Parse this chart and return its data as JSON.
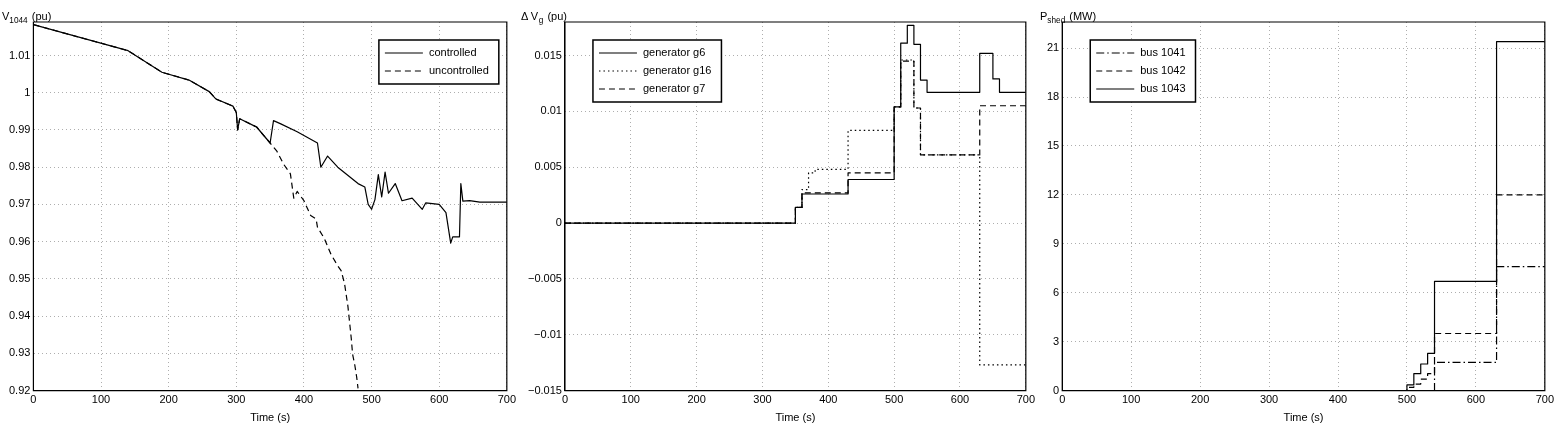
{
  "chart_data": [
    {
      "type": "line",
      "ylabel": "V$_{1044}$ (pu)",
      "xlabel": "Time (s)",
      "xlim": [
        0,
        700
      ],
      "xticks": [
        0,
        100,
        200,
        300,
        400,
        500,
        600,
        700
      ],
      "ylim": [
        0.92,
        1.019
      ],
      "yticks": [
        0.92,
        0.93,
        0.94,
        0.95,
        0.96,
        0.97,
        0.98,
        0.99,
        1,
        1.01
      ],
      "grid": true,
      "legend": "top right",
      "marker": "none",
      "series": [
        {
          "name": "controlled",
          "color": "#000000",
          "line_style": "solid",
          "x": [
            0,
            140,
            190,
            230,
            260,
            270,
            295,
            300,
            302,
            305,
            330,
            350,
            355,
            365,
            390,
            420,
            425,
            435,
            450,
            480,
            490,
            495,
            500,
            505,
            510,
            515,
            520,
            525,
            535,
            545,
            560,
            575,
            580,
            600,
            610,
            617,
            620,
            630,
            632,
            635,
            645,
            660,
            700
          ],
          "values": [
            1.0183,
            1.0113,
            1.0055,
            1.0034,
            1.0003,
            0.9983,
            0.9964,
            0.9947,
            0.99,
            0.993,
            0.9908,
            0.9865,
            0.9925,
            0.9917,
            0.9895,
            0.9865,
            0.98,
            0.983,
            0.98,
            0.9756,
            0.9747,
            0.97,
            0.9687,
            0.9713,
            0.978,
            0.972,
            0.9787,
            0.973,
            0.9756,
            0.971,
            0.9717,
            0.9687,
            0.9704,
            0.97,
            0.9678,
            0.9596,
            0.9613,
            0.9613,
            0.9756,
            0.9709,
            0.971,
            0.9706,
            0.9706
          ]
        },
        {
          "name": "uncontrolled",
          "color": "#000000",
          "line_style": "dashed",
          "x": [
            0,
            140,
            190,
            230,
            260,
            270,
            295,
            300,
            302,
            305,
            330,
            350,
            360,
            370,
            380,
            385,
            390,
            400,
            410,
            418,
            420,
            430,
            440,
            450,
            455,
            460,
            465,
            468,
            470,
            472,
            475,
            478,
            480
          ],
          "values": [
            1.0183,
            1.0113,
            1.0055,
            1.0034,
            1.0003,
            0.9983,
            0.9964,
            0.9947,
            0.99,
            0.993,
            0.9908,
            0.9865,
            0.9843,
            0.9808,
            0.9782,
            0.9717,
            0.9735,
            0.971,
            0.967,
            0.9661,
            0.9639,
            0.9609,
            0.9566,
            0.9535,
            0.9522,
            0.9488,
            0.9427,
            0.9375,
            0.934,
            0.9297,
            0.9271,
            0.9236,
            0.9206
          ]
        }
      ]
    },
    {
      "type": "step",
      "ylabel": "Δ V$_{g}$ (pu)",
      "xlabel": "Time (s)",
      "xlim": [
        0,
        700
      ],
      "xticks": [
        0,
        100,
        200,
        300,
        400,
        500,
        600,
        700
      ],
      "ylim": [
        -0.015,
        0.018
      ],
      "yticks": [
        {
          "value": -0.015,
          "label": "−0.015"
        },
        {
          "value": -0.01,
          "label": "−0.01"
        },
        {
          "value": -0.005,
          "label": "−0.005"
        },
        0,
        0.005,
        0.01,
        0.015
      ],
      "grid": true,
      "legend": "top left",
      "marker": "none",
      "series": [
        {
          "name": "generator g6",
          "color": "#000000",
          "line_style": "solid",
          "x": [
            0,
            350,
            360,
            430,
            500,
            510,
            520,
            530,
            540,
            550,
            630,
            650,
            660,
            700
          ],
          "values": [
            0,
            0.0014,
            0.0026,
            0.0039,
            0.0104,
            0.0161,
            0.0177,
            0.016,
            0.0128,
            0.0117,
            0.0152,
            0.0129,
            0.0117,
            0.0117
          ]
        },
        {
          "name": "generator g16",
          "color": "#000000",
          "line_style": "dotted",
          "x": [
            0,
            350,
            360,
            370,
            380,
            430,
            500,
            510,
            530,
            540,
            630,
            700
          ],
          "values": [
            0,
            0.0014,
            0.003,
            0.0045,
            0.0048,
            0.0083,
            0.0104,
            0.0146,
            0.0103,
            0.0061,
            -0.0127,
            -0.0127
          ]
        },
        {
          "name": "generator g7",
          "color": "#000000",
          "line_style": "dashed",
          "x": [
            0,
            350,
            360,
            430,
            500,
            510,
            530,
            540,
            630,
            700
          ],
          "values": [
            0,
            0.0014,
            0.0027,
            0.0045,
            0.0104,
            0.0145,
            0.0103,
            0.0061,
            0.0105,
            0.0105
          ]
        }
      ]
    },
    {
      "type": "step",
      "ylabel": "P$_{shed}$ (MW)",
      "xlabel": "Time (s)",
      "xlim": [
        0,
        700
      ],
      "xticks": [
        0,
        100,
        200,
        300,
        400,
        500,
        600,
        700
      ],
      "ylim": [
        0,
        22.6
      ],
      "yticks": [
        0,
        3,
        6,
        9,
        12,
        15,
        18,
        21
      ],
      "grid": true,
      "legend": "top left",
      "marker": "none",
      "series": [
        {
          "name": "bus 1041",
          "color": "#000000",
          "line_style": "dashdot",
          "x": [
            0,
            540,
            630,
            700
          ],
          "values": [
            0,
            1.73,
            7.6,
            7.6
          ]
        },
        {
          "name": "bus 1042",
          "color": "#000000",
          "line_style": "dashed",
          "x": [
            0,
            500,
            510,
            520,
            530,
            540,
            630,
            700
          ],
          "values": [
            0,
            0.2,
            0.4,
            0.7,
            1.04,
            3.5,
            12,
            12
          ]
        },
        {
          "name": "bus 1043",
          "color": "#000000",
          "line_style": "solid",
          "x": [
            0,
            500,
            510,
            520,
            530,
            540,
            630,
            700
          ],
          "values": [
            0,
            0.35,
            1.04,
            1.63,
            2.28,
            6.7,
            21.4,
            21.4
          ]
        }
      ]
    }
  ]
}
